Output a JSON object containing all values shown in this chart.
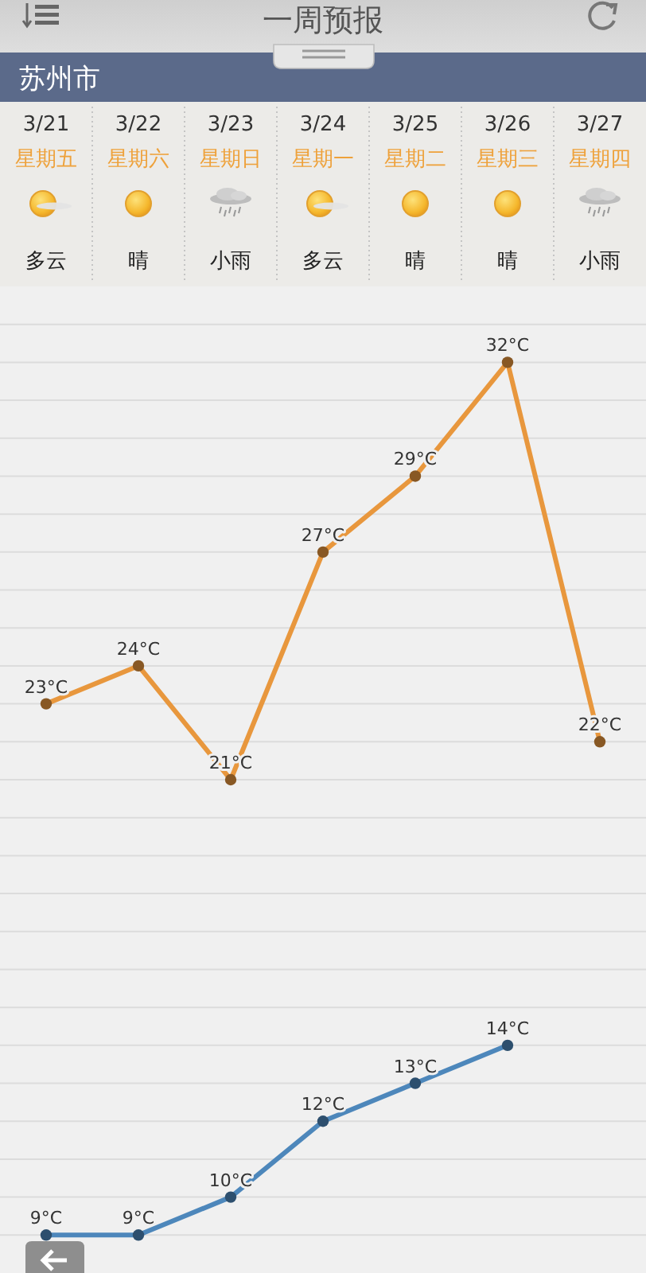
{
  "chart_data": {
    "type": "line",
    "title": "一周预报",
    "subtitle": "苏州市",
    "categories": [
      "3/21",
      "3/22",
      "3/23",
      "3/24",
      "3/25",
      "3/26",
      "3/27"
    ],
    "series": [
      {
        "color": "#e8973d",
        "values": [
          23,
          24,
          21,
          27,
          29,
          32,
          22
        ],
        "value_labels": [
          "23°C",
          "24°C",
          "21°C",
          "27°C",
          "29°C",
          "32°C",
          "22°C"
        ]
      },
      {
        "color": "#4d87bb",
        "values": [
          9,
          9,
          10,
          12,
          13,
          14,
          null
        ],
        "value_labels": [
          "9°C",
          "9°C",
          "10°C",
          "12°C",
          "13°C",
          "14°C",
          null
        ]
      }
    ],
    "ylim": [
      8,
      34
    ],
    "yticks": [
      {
        "value": 9,
        "label": null
      },
      {
        "value": 10,
        "label": null
      },
      {
        "value": 11,
        "label": null
      },
      {
        "value": 12,
        "label": null
      },
      {
        "value": 13,
        "label": null
      },
      {
        "value": 14,
        "label": null
      },
      {
        "value": 15,
        "label": null
      },
      {
        "value": 16,
        "label": null
      },
      {
        "value": 17,
        "label": null
      },
      {
        "value": 18,
        "label": null
      },
      {
        "value": 19,
        "label": null
      },
      {
        "value": 20,
        "label": null
      },
      {
        "value": 21,
        "label": null
      },
      {
        "value": 22,
        "label": null
      },
      {
        "value": 23,
        "label": null
      },
      {
        "value": 24,
        "label": null
      },
      {
        "value": 25,
        "label": null
      },
      {
        "value": 26,
        "label": null
      },
      {
        "value": 27,
        "label": null
      },
      {
        "value": 28,
        "label": null
      },
      {
        "value": 29,
        "label": null
      },
      {
        "value": 30,
        "label": null
      },
      {
        "value": 31,
        "label": null
      },
      {
        "value": 32,
        "label": null
      },
      {
        "value": 33,
        "label": null
      }
    ],
    "grid": "y",
    "tick_labels": "x",
    "marker": "circle",
    "line_style": "solid",
    "annotations": [
      "星期五",
      "星期六",
      "星期日",
      "星期一",
      "星期二",
      "星期三",
      "星期四",
      "多云",
      "晴",
      "小雨",
      "多云",
      "晴",
      "晴",
      "小雨"
    ]
  }
}
